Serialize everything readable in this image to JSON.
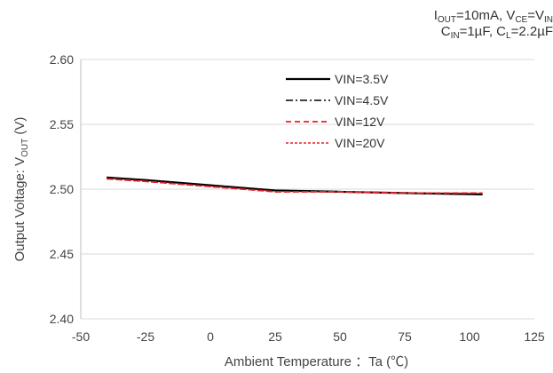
{
  "conditions": {
    "line1": "I_OUT=10mA, V_CE=V_IN",
    "line2": "C_IN=1µF, C_L=2.2µF"
  },
  "chart_data": {
    "type": "line",
    "xlabel": "Ambient Temperature ：Ta (℃)",
    "ylabel": "Output Voltage: V_OUT (V)",
    "xlim": [
      -50,
      125
    ],
    "ylim": [
      2.4,
      2.6
    ],
    "x_ticks": [
      "-50",
      "-25",
      "0",
      "25",
      "50",
      "75",
      "100",
      "125"
    ],
    "y_ticks": [
      "2.40",
      "2.45",
      "2.50",
      "2.55",
      "2.60"
    ],
    "grid": "horizontal",
    "legend_position": "top-right",
    "x": [
      -40,
      -25,
      0,
      25,
      50,
      75,
      105
    ],
    "series": [
      {
        "name": "VIN=3.5V",
        "color": "#000000",
        "dash": "solid",
        "values": [
          2.509,
          2.507,
          2.503,
          2.499,
          2.498,
          2.497,
          2.496
        ]
      },
      {
        "name": "VIN=4.5V",
        "color": "#000000",
        "dash": "dashdot",
        "values": [
          2.509,
          2.507,
          2.503,
          2.499,
          2.498,
          2.497,
          2.496
        ]
      },
      {
        "name": "VIN=12V",
        "color": "#e8202a",
        "dash": "dashed",
        "values": [
          2.508,
          2.506,
          2.502,
          2.498,
          2.498,
          2.497,
          2.497
        ]
      },
      {
        "name": "VIN=20V",
        "color": "#e8202a",
        "dash": "dotted",
        "values": [
          2.508,
          2.506,
          2.502,
          2.498,
          2.498,
          2.497,
          2.497
        ]
      }
    ]
  }
}
